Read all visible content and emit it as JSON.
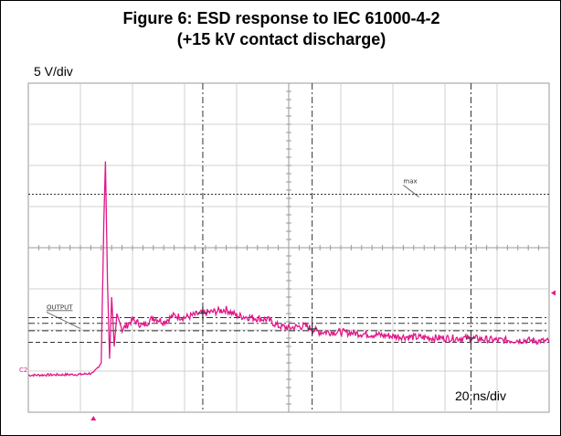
{
  "figure": {
    "title_line1": "Figure 6: ESD response to IEC 61000-4-2",
    "title_line2": "(+15 kV contact discharge)"
  },
  "colors": {
    "trace": "#e0188a",
    "grid": "#9a9a9a",
    "cursor": "#333333",
    "background": "#ffffff"
  },
  "chart_data": {
    "type": "line",
    "title": "Figure 6: ESD response to IEC 61000-4-2 (+15 kV contact discharge)",
    "vertical_scale": "5 V/div",
    "horizontal_scale": "20 ns/div",
    "x_divisions": 10,
    "y_divisions": 8,
    "grid": true,
    "channel_label": "C2",
    "annotations": [
      "max",
      "OUTPUT"
    ],
    "markers": {
      "trigger": "bottom",
      "ch_ref": "right"
    },
    "max_line_div": 5.3,
    "output_line_div": 1.7,
    "cursor_levels_div": [
      2.3,
      2.16,
      1.98
    ],
    "cursor_times_div": [
      3.35,
      5.45,
      8.5
    ],
    "series": [
      {
        "x_div": [
          0,
          1.0,
          1.25,
          1.4,
          1.45,
          1.48,
          1.52,
          1.56,
          1.6,
          1.65,
          1.7,
          1.8,
          2.0,
          2.2,
          2.4,
          2.6,
          2.8,
          3.0,
          3.3,
          3.6,
          3.8,
          4.0,
          4.3,
          4.6,
          4.8,
          5.0,
          5.3,
          5.6,
          6.0,
          6.5,
          7.0,
          7.5,
          8.0,
          8.5,
          9.0,
          9.5,
          10.0,
          10.5,
          11.0,
          11.5,
          12.0,
          12.5,
          13.0,
          14.0
        ],
        "y_div": [
          0.9,
          0.92,
          0.95,
          1.2,
          4.6,
          6.1,
          3.2,
          1.3,
          2.8,
          1.6,
          2.4,
          2.0,
          2.25,
          2.1,
          2.3,
          2.2,
          2.35,
          2.3,
          2.4,
          2.45,
          2.5,
          2.35,
          2.3,
          2.25,
          2.1,
          2.05,
          2.1,
          1.95,
          1.95,
          1.9,
          1.85,
          1.82,
          1.8,
          1.8,
          1.75,
          1.75,
          1.72,
          1.7,
          1.68,
          1.65,
          1.65,
          1.62,
          1.6,
          1.6
        ]
      }
    ]
  }
}
